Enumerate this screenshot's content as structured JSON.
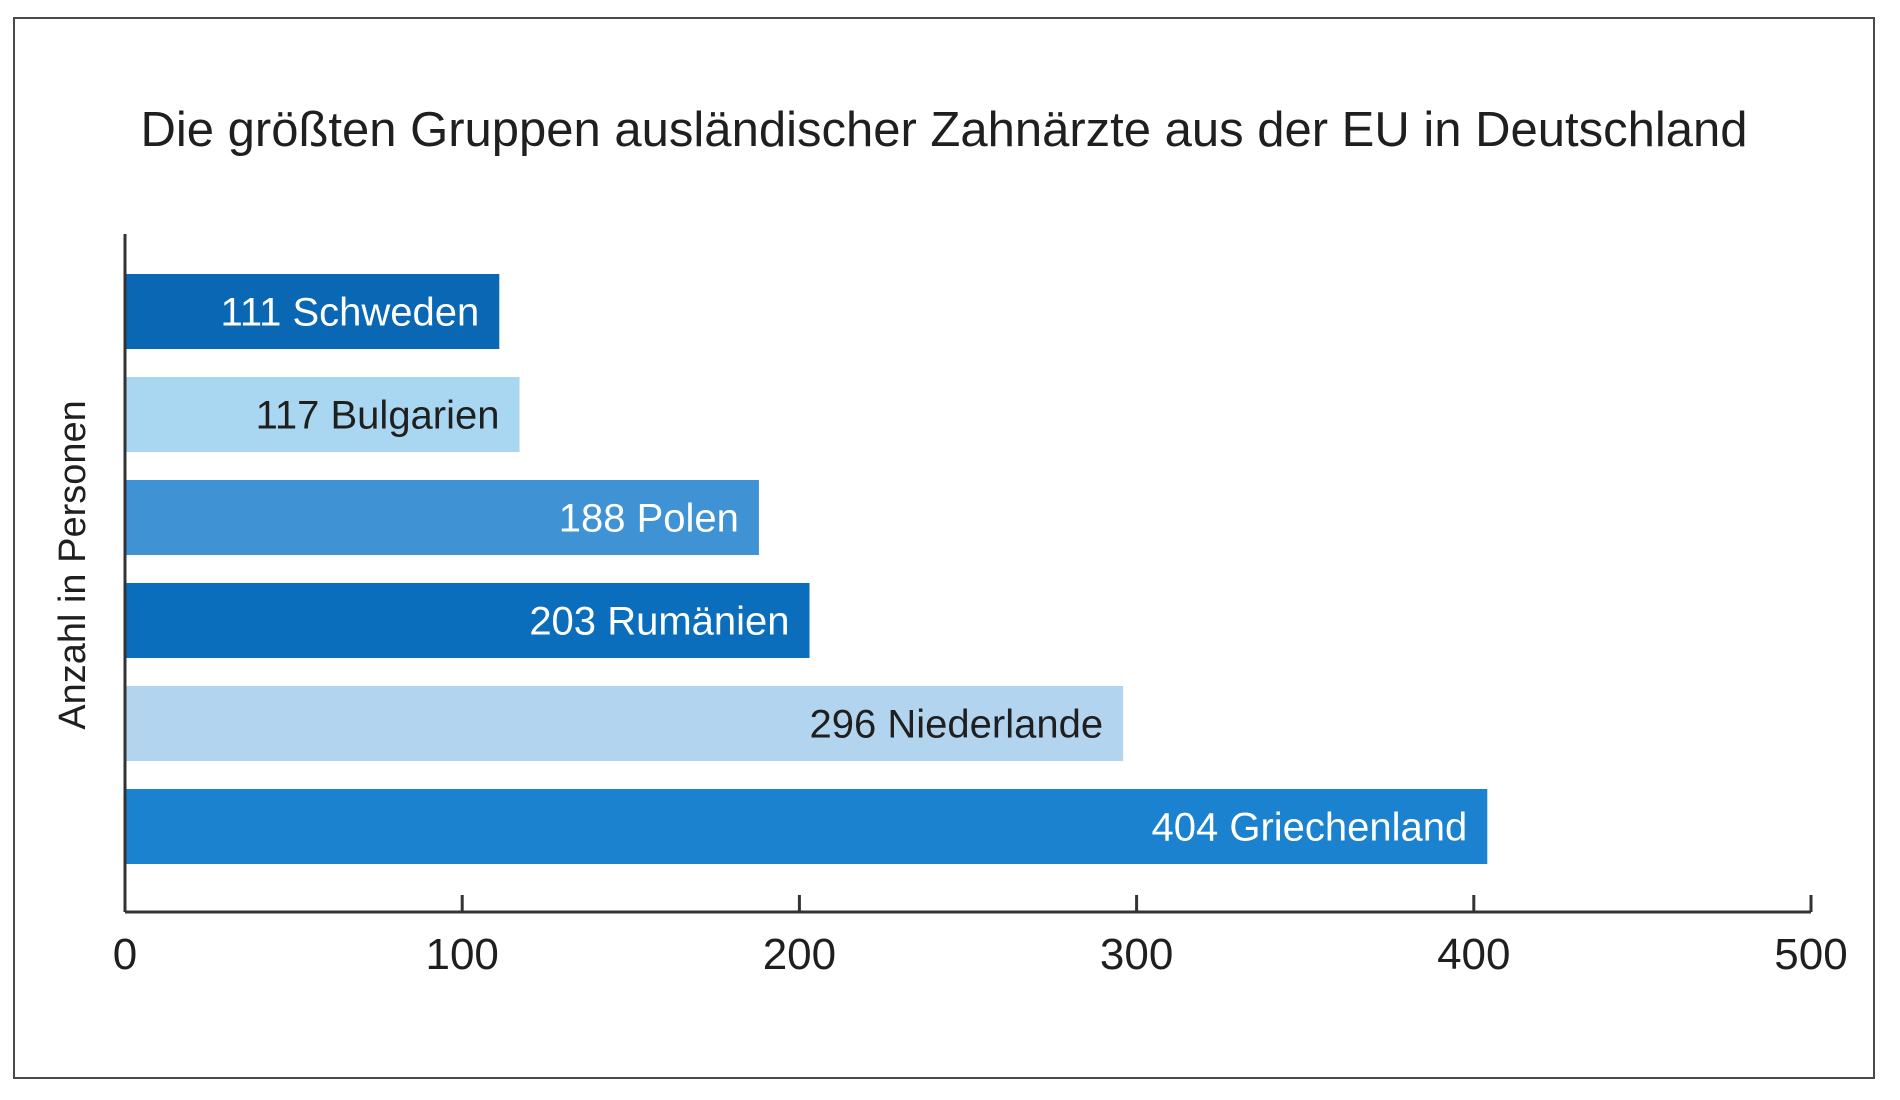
{
  "chart_data": {
    "type": "bar",
    "orientation": "horizontal",
    "title": "Die größten Gruppen ausländischer Zahnärzte aus der EU in Deutschland",
    "xlabel": "",
    "ylabel": "Anzahl in Personen",
    "xlim": [
      0,
      500
    ],
    "x_ticks": [
      "0",
      "100",
      "200",
      "300",
      "400",
      "500"
    ],
    "grid": false,
    "legend": "none",
    "categories": [
      "Schweden",
      "Bulgarien",
      "Polen",
      "Rumänien",
      "Niederlande",
      "Griechenland"
    ],
    "values": [
      111,
      117,
      188,
      203,
      296,
      404
    ],
    "bar_colors": [
      "#0a67b4",
      "#a9d7f2",
      "#3f93d4",
      "#0a6ebd",
      "#b3d4ef",
      "#1a82cf"
    ],
    "label_colors": [
      "#ffffff",
      "#1f1f1f",
      "#ffffff",
      "#ffffff",
      "#1f1f1f",
      "#ffffff"
    ]
  }
}
